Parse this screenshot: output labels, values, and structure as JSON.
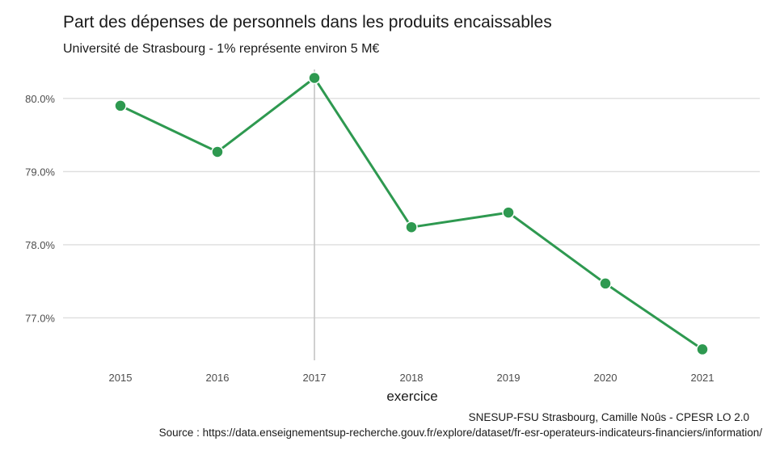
{
  "chart_data": {
    "type": "line",
    "title": "Part des dépenses de personnels dans les produits encaissables",
    "subtitle": "Université de Strasbourg - 1% représente environ 5 M€",
    "xlabel": "exercice",
    "ylabel": "",
    "x": [
      "2015",
      "2016",
      "2017",
      "2018",
      "2019",
      "2020",
      "2021"
    ],
    "series": [
      {
        "values": [
          79.9,
          79.27,
          80.28,
          78.24,
          78.44,
          77.47,
          76.57
        ]
      }
    ],
    "yticks": [
      77.0,
      78.0,
      79.0,
      80.0
    ],
    "ytick_labels": [
      "77.0%",
      "78.0%",
      "79.0%",
      "80.0%"
    ],
    "ylim": [
      76.42,
      80.44
    ],
    "highlight_x": "2017",
    "grid": true,
    "line_color": "#2e9950",
    "grid_color": "#dedede",
    "highlight_color": "#c4c4c4"
  },
  "caption": {
    "credit": "SNESUP-FSU Strasbourg, Camille Noûs - CPESR LO 2.0",
    "source": "Source : https://data.enseignementsup-recherche.gouv.fr/explore/dataset/fr-esr-operateurs-indicateurs-financiers/information/"
  }
}
